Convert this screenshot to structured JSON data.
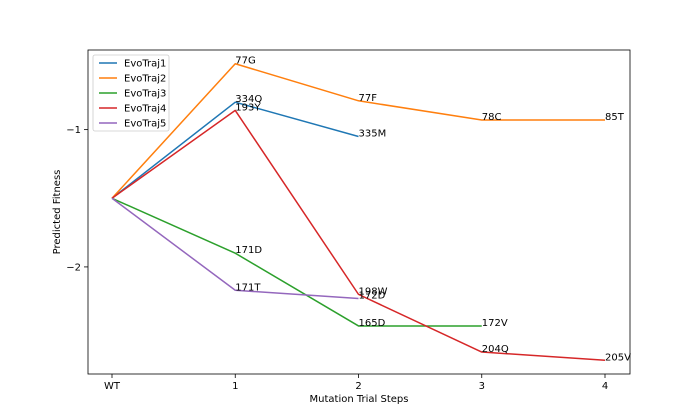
{
  "chart_data": {
    "type": "line",
    "xlabel": "Mutation Trial Steps",
    "ylabel": "Predicted Fitness",
    "categories": [
      "WT",
      "1",
      "2",
      "3",
      "4"
    ],
    "y_ticks": [
      -1,
      -2
    ],
    "y_tick_labels": [
      "−1",
      "−2"
    ],
    "ylim": [
      -2.78,
      -0.42
    ],
    "legend_position": "top-left",
    "grid": false,
    "series": [
      {
        "name": "EvoTraj1",
        "color": "#1f77b4",
        "points": [
          {
            "x": 0,
            "y": -1.5,
            "label": ""
          },
          {
            "x": 1,
            "y": -0.8,
            "label": "334Q"
          },
          {
            "x": 2,
            "y": -1.05,
            "label": "335M"
          }
        ]
      },
      {
        "name": "EvoTraj2",
        "color": "#ff7f0e",
        "points": [
          {
            "x": 0,
            "y": -1.5,
            "label": ""
          },
          {
            "x": 1,
            "y": -0.52,
            "label": "77G"
          },
          {
            "x": 2,
            "y": -0.79,
            "label": "77F"
          },
          {
            "x": 3,
            "y": -0.93,
            "label": "78C"
          },
          {
            "x": 4,
            "y": -0.93,
            "label": "85T"
          }
        ]
      },
      {
        "name": "EvoTraj3",
        "color": "#2ca02c",
        "points": [
          {
            "x": 0,
            "y": -1.5,
            "label": ""
          },
          {
            "x": 1,
            "y": -1.9,
            "label": "171D"
          },
          {
            "x": 2,
            "y": -2.43,
            "label": "165D"
          },
          {
            "x": 3,
            "y": -2.43,
            "label": "172V"
          }
        ]
      },
      {
        "name": "EvoTraj4",
        "color": "#d62728",
        "points": [
          {
            "x": 0,
            "y": -1.5,
            "label": ""
          },
          {
            "x": 1,
            "y": -0.86,
            "label": "193Y"
          },
          {
            "x": 2,
            "y": -2.2,
            "label": "198W"
          },
          {
            "x": 3,
            "y": -2.62,
            "label": "204Q"
          },
          {
            "x": 4,
            "y": -2.68,
            "label": "205V"
          }
        ]
      },
      {
        "name": "EvoTraj5",
        "color": "#9467bd",
        "points": [
          {
            "x": 0,
            "y": -1.5,
            "label": ""
          },
          {
            "x": 1,
            "y": -2.17,
            "label": "171T"
          },
          {
            "x": 2,
            "y": -2.23,
            "label": "172D"
          }
        ]
      }
    ]
  }
}
